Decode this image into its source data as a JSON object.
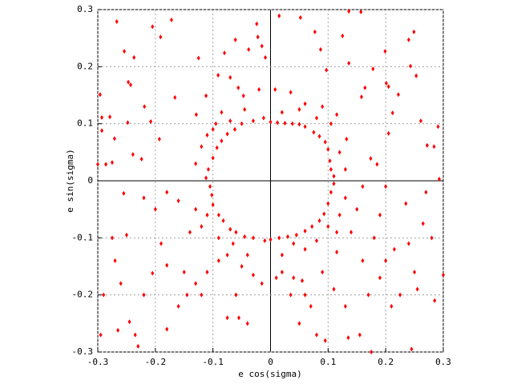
{
  "chart_data": {
    "type": "scatter",
    "x_label": "e cos(sigma)",
    "y_label": "e sin(sigma)",
    "color": "#ff0000",
    "grid": true,
    "xlim": [
      -0.3,
      0.3
    ],
    "ylim": [
      -0.3,
      0.3
    ],
    "xticks": [
      -0.3,
      -0.2,
      -0.1,
      0,
      0.1,
      0.2,
      0.3
    ],
    "yticks": [
      -0.3,
      -0.2,
      -0.1,
      0,
      0.1,
      0.2,
      0.3
    ],
    "x": [
      -0.267,
      -0.172,
      -0.205,
      -0.191,
      -0.254,
      -0.237,
      -0.247,
      -0.243,
      -0.296,
      -0.279,
      -0.293,
      -0.293,
      -0.271,
      -0.248,
      -0.219,
      -0.208,
      -0.193,
      -0.239,
      -0.224,
      -0.275,
      -0.286,
      -0.3,
      -0.125,
      -0.112,
      -0.166,
      -0.129,
      -0.091,
      -0.08,
      -0.07,
      -0.061,
      -0.056,
      -0.047,
      -0.038,
      -0.024,
      -0.022,
      -0.015,
      -0.009,
      0.015,
      0.052,
      0.077,
      0.087,
      0.125,
      0.136,
      0.157,
      0.097,
      0.136,
      0.178,
      0.199,
      0.243,
      0.249,
      0.24,
      0.201,
      0.205,
      0.222,
      0.253,
      0.212,
      0.261,
      0.291,
      0.272,
      0.284,
      0.205,
      0.174,
      0.185,
      0.158,
      0.164,
      0.132,
      0.115,
      0.293,
      0.0,
      0.012,
      0.025,
      0.038,
      0.05,
      0.06,
      0.075,
      0.085,
      0.095,
      0.1,
      0.103,
      0.105,
      0.11,
      -0.012,
      -0.03,
      -0.05,
      -0.062,
      -0.075,
      -0.085,
      -0.093,
      -0.1,
      -0.108,
      -0.112,
      -0.07,
      -0.095,
      -0.11,
      -0.12,
      -0.13,
      0.02,
      0.05,
      0.08,
      0.105,
      0.09,
      0.12,
      0.13,
      -0.045,
      -0.085,
      -0.1,
      0.035,
      0.008,
      -0.02,
      0.06,
      0.0,
      0.015,
      0.03,
      0.045,
      0.06,
      0.072,
      0.085,
      0.093,
      0.1,
      0.105,
      0.11,
      -0.01,
      -0.03,
      -0.045,
      -0.06,
      -0.07,
      -0.082,
      -0.09,
      -0.1,
      -0.102,
      -0.105,
      -0.11,
      -0.12,
      -0.09,
      -0.065,
      0.02,
      0.06,
      0.08,
      0.1,
      0.12,
      0.13,
      -0.13,
      -0.04,
      0.115,
      -0.075,
      0.04,
      -0.295,
      -0.265,
      -0.29,
      -0.245,
      -0.23,
      -0.27,
      -0.25,
      -0.22,
      -0.205,
      -0.18,
      -0.16,
      -0.145,
      -0.13,
      -0.11,
      -0.09,
      -0.075,
      -0.055,
      -0.04,
      -0.03,
      -0.015,
      0.01,
      0.02,
      0.035,
      0.055,
      0.07,
      0.08,
      0.095,
      0.11,
      0.13,
      0.135,
      0.155,
      0.17,
      0.175,
      0.19,
      0.2,
      0.21,
      0.215,
      0.225,
      0.24,
      0.25,
      0.255,
      0.265,
      0.28,
      0.285,
      0.3,
      0.245,
      0.16,
      0.14,
      0.18,
      -0.2,
      -0.19,
      -0.22,
      -0.255,
      -0.275,
      -0.16,
      -0.14,
      -0.15,
      -0.18,
      0.15,
      0.2,
      0.235,
      0.27,
      0.19,
      0.16,
      0.06,
      0.09,
      -0.06,
      -0.12,
      0.05,
      -0.18,
      -0.26,
      -0.235,
      0.04,
      0.115,
      -0.05
    ],
    "y": [
      0.279,
      0.282,
      0.27,
      0.252,
      0.227,
      0.216,
      0.173,
      0.168,
      0.151,
      0.112,
      0.111,
      0.088,
      0.074,
      0.102,
      0.13,
      0.104,
      0.073,
      0.046,
      0.038,
      0.032,
      0.029,
      0.029,
      0.215,
      0.149,
      0.146,
      0.116,
      0.185,
      0.224,
      0.181,
      0.247,
      0.163,
      0.149,
      0.23,
      0.275,
      0.252,
      0.236,
      0.216,
      0.289,
      0.286,
      0.261,
      0.23,
      0.254,
      0.297,
      0.296,
      0.194,
      0.206,
      0.196,
      0.227,
      0.201,
      0.261,
      0.247,
      0.171,
      0.165,
      0.151,
      0.184,
      0.119,
      0.105,
      0.095,
      0.062,
      0.06,
      0.083,
      0.039,
      0.029,
      0.147,
      0.163,
      0.073,
      0.116,
      0.003,
      0.103,
      0.102,
      0.101,
      0.1,
      0.099,
      0.095,
      0.085,
      0.078,
      0.068,
      0.055,
      0.035,
      0.02,
      0.008,
      0.11,
      0.105,
      0.1,
      0.09,
      0.082,
      0.07,
      0.058,
      0.04,
      0.02,
      0.005,
      0.105,
      0.1,
      0.08,
      0.06,
      0.03,
      0.12,
      0.125,
      0.11,
      0.1,
      0.13,
      0.05,
      0.02,
      0.125,
      0.12,
      0.09,
      0.155,
      0.16,
      0.16,
      0.135,
      -0.103,
      -0.1,
      -0.098,
      -0.095,
      -0.088,
      -0.08,
      -0.07,
      -0.058,
      -0.04,
      -0.02,
      -0.005,
      -0.105,
      -0.1,
      -0.098,
      -0.09,
      -0.085,
      -0.07,
      -0.06,
      -0.042,
      -0.025,
      -0.01,
      -0.06,
      -0.08,
      -0.1,
      -0.11,
      -0.13,
      -0.12,
      -0.105,
      -0.08,
      -0.06,
      -0.03,
      -0.05,
      -0.13,
      -0.09,
      -0.13,
      -0.11,
      -0.27,
      -0.262,
      -0.2,
      -0.247,
      -0.29,
      -0.14,
      -0.095,
      -0.2,
      -0.162,
      -0.148,
      -0.22,
      -0.2,
      -0.18,
      -0.16,
      -0.14,
      -0.24,
      -0.24,
      -0.25,
      -0.165,
      -0.18,
      -0.17,
      -0.16,
      -0.2,
      -0.175,
      -0.22,
      -0.27,
      -0.28,
      -0.19,
      -0.22,
      -0.275,
      -0.27,
      -0.2,
      -0.3,
      -0.17,
      -0.14,
      -0.22,
      -0.12,
      -0.2,
      -0.11,
      -0.16,
      -0.19,
      -0.075,
      -0.1,
      -0.21,
      -0.165,
      -0.295,
      -0.14,
      -0.09,
      -0.1,
      -0.05,
      -0.11,
      -0.03,
      -0.022,
      -0.1,
      -0.035,
      -0.09,
      -0.16,
      -0.02,
      -0.05,
      -0.01,
      -0.04,
      -0.02,
      -0.06,
      -0.01,
      -0.2,
      -0.16,
      -0.2,
      -0.2,
      -0.25,
      -0.26,
      -0.18,
      -0.27,
      -0.17,
      -0.125,
      -0.15
    ]
  }
}
